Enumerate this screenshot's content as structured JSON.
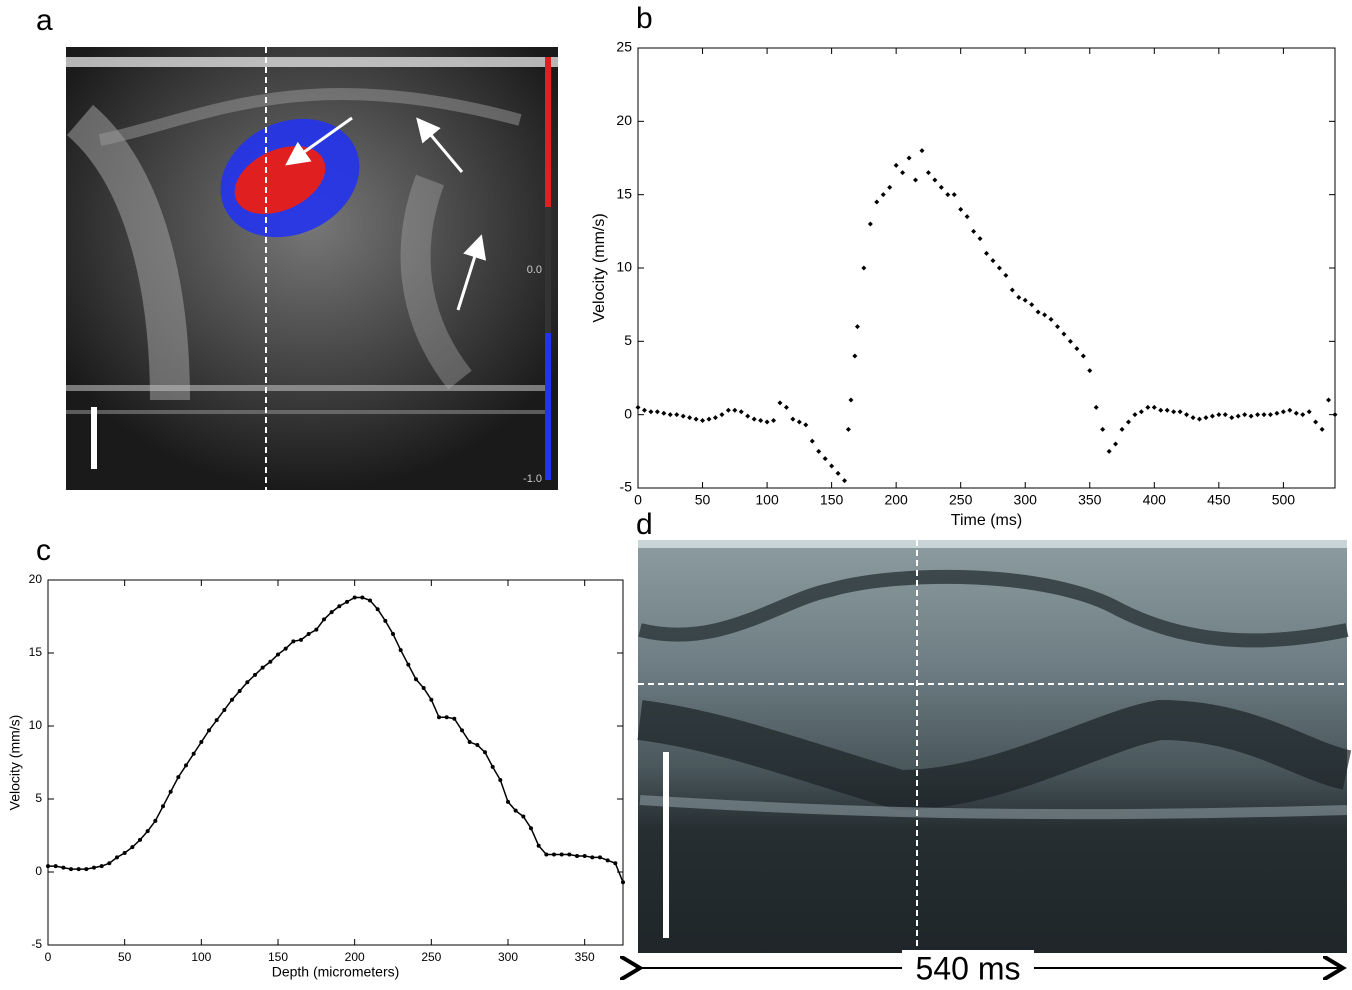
{
  "chart_data": [
    {
      "type": "scatter",
      "panel": "b",
      "x_label": "Time (ms)",
      "y_label": "Velocity (mm/s)",
      "color": "#000000",
      "xlim": [
        0,
        540
      ],
      "ylim": [
        -5,
        25
      ],
      "xticks": [
        0,
        50,
        100,
        150,
        200,
        250,
        300,
        350,
        400,
        450,
        500
      ],
      "yticks": [
        -5,
        0,
        5,
        10,
        15,
        20,
        25
      ],
      "x": [
        0,
        5,
        10,
        15,
        20,
        25,
        30,
        35,
        40,
        45,
        50,
        55,
        60,
        65,
        70,
        75,
        80,
        85,
        90,
        95,
        100,
        105,
        110,
        115,
        120,
        125,
        130,
        135,
        140,
        145,
        150,
        155,
        160,
        163,
        165,
        168,
        170,
        175,
        180,
        185,
        190,
        195,
        200,
        205,
        210,
        215,
        220,
        225,
        230,
        235,
        240,
        245,
        250,
        255,
        260,
        265,
        270,
        275,
        280,
        285,
        290,
        295,
        300,
        305,
        310,
        315,
        320,
        325,
        330,
        335,
        340,
        345,
        350,
        355,
        360,
        365,
        370,
        375,
        380,
        385,
        390,
        395,
        400,
        405,
        410,
        415,
        420,
        425,
        430,
        435,
        440,
        445,
        450,
        455,
        460,
        465,
        470,
        475,
        480,
        485,
        490,
        495,
        500,
        505,
        510,
        515,
        520,
        525,
        530,
        535,
        540
      ],
      "values": [
        0.5,
        0.3,
        0.2,
        0.2,
        0.1,
        0,
        0,
        -0.1,
        -0.2,
        -0.3,
        -0.4,
        -0.3,
        -0.2,
        0,
        0.3,
        0.3,
        0.2,
        -0.1,
        -0.3,
        -0.4,
        -0.5,
        -0.4,
        0.8,
        0.5,
        -0.3,
        -0.5,
        -0.7,
        -1.8,
        -2.5,
        -3,
        -3.5,
        -4,
        -4.5,
        -1,
        1,
        4,
        6,
        10,
        13,
        14.5,
        15,
        15.5,
        17,
        16.5,
        17.5,
        16,
        18,
        16.5,
        16,
        15.5,
        15,
        15,
        14,
        13.5,
        12.5,
        12,
        11,
        10.5,
        10,
        9.5,
        8.5,
        8,
        7.8,
        7.5,
        7,
        6.8,
        6.5,
        6,
        5.5,
        5,
        4.5,
        4,
        3,
        0.5,
        -1,
        -2.5,
        -2,
        -1,
        -0.5,
        0,
        0.2,
        0.5,
        0.5,
        0.3,
        0.3,
        0.2,
        0.2,
        0,
        -0.2,
        -0.3,
        -0.2,
        -0.1,
        0,
        0,
        -0.2,
        -0.1,
        0,
        -0.1,
        0,
        0,
        0,
        0.1,
        0.2,
        0.3,
        0.1,
        0,
        0.2,
        -0.5,
        -1,
        1,
        0
      ]
    },
    {
      "type": "line",
      "panel": "c",
      "x_label": "Depth (micrometers)",
      "y_label": "Velocity (mm/s)",
      "color": "#000000",
      "xlim": [
        0,
        375
      ],
      "ylim": [
        -5,
        20
      ],
      "xticks": [
        0,
        50,
        100,
        150,
        200,
        250,
        300,
        350
      ],
      "yticks": [
        -5,
        0,
        5,
        10,
        15,
        20
      ],
      "x": [
        0,
        5,
        10,
        15,
        20,
        25,
        30,
        35,
        40,
        45,
        50,
        55,
        60,
        65,
        70,
        75,
        80,
        85,
        90,
        95,
        100,
        105,
        110,
        115,
        120,
        125,
        130,
        135,
        140,
        145,
        150,
        155,
        160,
        165,
        170,
        175,
        180,
        185,
        190,
        195,
        200,
        205,
        210,
        215,
        220,
        225,
        230,
        235,
        240,
        245,
        250,
        255,
        260,
        265,
        270,
        275,
        280,
        285,
        290,
        295,
        300,
        305,
        310,
        315,
        320,
        325,
        330,
        335,
        340,
        345,
        350,
        355,
        360,
        365,
        370,
        375
      ],
      "values": [
        0.4,
        0.4,
        0.3,
        0.2,
        0.2,
        0.2,
        0.3,
        0.4,
        0.6,
        1,
        1.3,
        1.7,
        2.2,
        2.8,
        3.5,
        4.5,
        5.5,
        6.5,
        7.3,
        8.1,
        8.9,
        9.7,
        10.4,
        11.1,
        11.8,
        12.4,
        13,
        13.5,
        14,
        14.4,
        14.9,
        15.3,
        15.8,
        15.9,
        16.3,
        16.6,
        17.3,
        17.8,
        18.2,
        18.5,
        18.8,
        18.8,
        18.6,
        18,
        17.2,
        16.3,
        15.2,
        14.2,
        13.2,
        12.6,
        11.8,
        10.6,
        10.6,
        10.5,
        9.7,
        8.9,
        8.7,
        8.2,
        7.2,
        6.3,
        4.8,
        4.2,
        3.8,
        3,
        1.8,
        1.2,
        1.2,
        1.2,
        1.2,
        1.1,
        1.1,
        1,
        1,
        0.8,
        0.6,
        -0.7
      ]
    }
  ],
  "images": [
    {
      "panel": "a",
      "colorbar_labels": [
        "0.0",
        "-1.0"
      ]
    },
    {
      "panel": "d",
      "duration_label": "540 ms"
    }
  ]
}
